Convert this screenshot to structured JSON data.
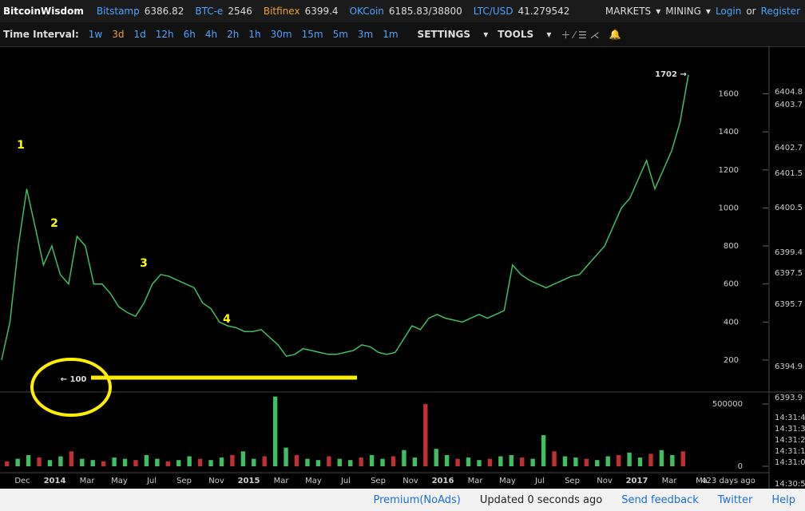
{
  "header": {
    "brand": "BitcoinWisdom",
    "tickers": [
      {
        "name": "Bitstamp",
        "price": "6386.82"
      },
      {
        "name": "BTC-e",
        "price": "2546"
      },
      {
        "name": "Bitfinex",
        "price": "6399.4"
      },
      {
        "name": "OKCoin",
        "price": "6185.83/38800"
      },
      {
        "name": "LTC/USD",
        "price": "41.279542"
      }
    ],
    "menus": [
      "MARKETS",
      "MINING"
    ],
    "login": "Login",
    "or": "or",
    "register": "Register"
  },
  "toolbar": {
    "label": "Time Interval:",
    "intervals": [
      "1w",
      "3d",
      "1d",
      "12h",
      "6h",
      "4h",
      "2h",
      "1h",
      "30m",
      "15m",
      "5m",
      "3m",
      "1m"
    ],
    "settings": "SETTINGS",
    "tools": "TOOLS"
  },
  "footer": {
    "links": [
      "Premium(NoAds)",
      "Updated 0 seconds ago",
      "Send feedback",
      "Twitter",
      "Help"
    ]
  },
  "chart_data": {
    "type": "line",
    "color": "#3fbf5f",
    "values": [
      200,
      400,
      800,
      1100,
      900,
      700,
      800,
      650,
      600,
      850,
      800,
      600,
      600,
      550,
      480,
      450,
      430,
      500,
      600,
      650,
      640,
      620,
      600,
      580,
      500,
      470,
      400,
      380,
      370,
      350,
      350,
      360,
      320,
      280,
      220,
      230,
      260,
      250,
      240,
      230,
      230,
      240,
      250,
      280,
      270,
      240,
      230,
      240,
      310,
      380,
      360,
      420,
      440,
      420,
      410,
      400,
      420,
      440,
      420,
      440,
      460,
      700,
      650,
      620,
      600,
      580,
      600,
      620,
      640,
      650,
      700,
      750,
      800,
      900,
      1000,
      1050,
      1150,
      1250,
      1100,
      1200,
      1300,
      1450,
      1700
    ],
    "ylim": [
      36,
      1850
    ],
    "yticks": [
      200,
      400,
      600,
      800,
      1000,
      1200,
      1400,
      1600
    ],
    "xticks": [
      "Dec",
      "2014",
      "Mar",
      "May",
      "Jul",
      "Sep",
      "Nov",
      "2015",
      "Mar",
      "May",
      "Jul",
      "Sep",
      "Nov",
      "2016",
      "Mar",
      "May",
      "Jul",
      "Sep",
      "Nov",
      "2017",
      "Mar",
      "Ma"
    ],
    "age": "423 days ago",
    "annotations": [
      "1",
      "2",
      "3",
      "4",
      "1702 →",
      "← 100"
    ],
    "volume": {
      "color": "#3fbf5f",
      "ylim": [
        0,
        590000
      ],
      "yticks": [
        0,
        500000
      ],
      "values": [
        40000,
        60000,
        90000,
        70000,
        50000,
        80000,
        120000,
        60000,
        50000,
        40000,
        70000,
        60000,
        50000,
        90000,
        60000,
        40000,
        50000,
        80000,
        60000,
        50000,
        70000,
        90000,
        120000,
        60000,
        80000,
        560000,
        150000,
        90000,
        60000,
        50000,
        80000,
        60000,
        50000,
        70000,
        90000,
        60000,
        80000,
        130000,
        70000,
        500000,
        140000,
        90000,
        60000,
        70000,
        50000,
        60000,
        80000,
        90000,
        70000,
        60000,
        250000,
        120000,
        80000,
        70000,
        60000,
        50000,
        80000,
        90000,
        110000,
        70000,
        100000,
        130000,
        90000,
        120000
      ]
    },
    "right_labels": [
      "6404.8",
      "6403.7",
      "6402.7",
      "6401.5",
      "6400.5",
      "6399.4",
      "6397.5",
      "6395.7",
      "6394.9",
      "6393.9",
      "14:31:4",
      "14:31:3",
      "14:31:2",
      "14:31:1",
      "14:31:0",
      "14:30:5"
    ]
  }
}
